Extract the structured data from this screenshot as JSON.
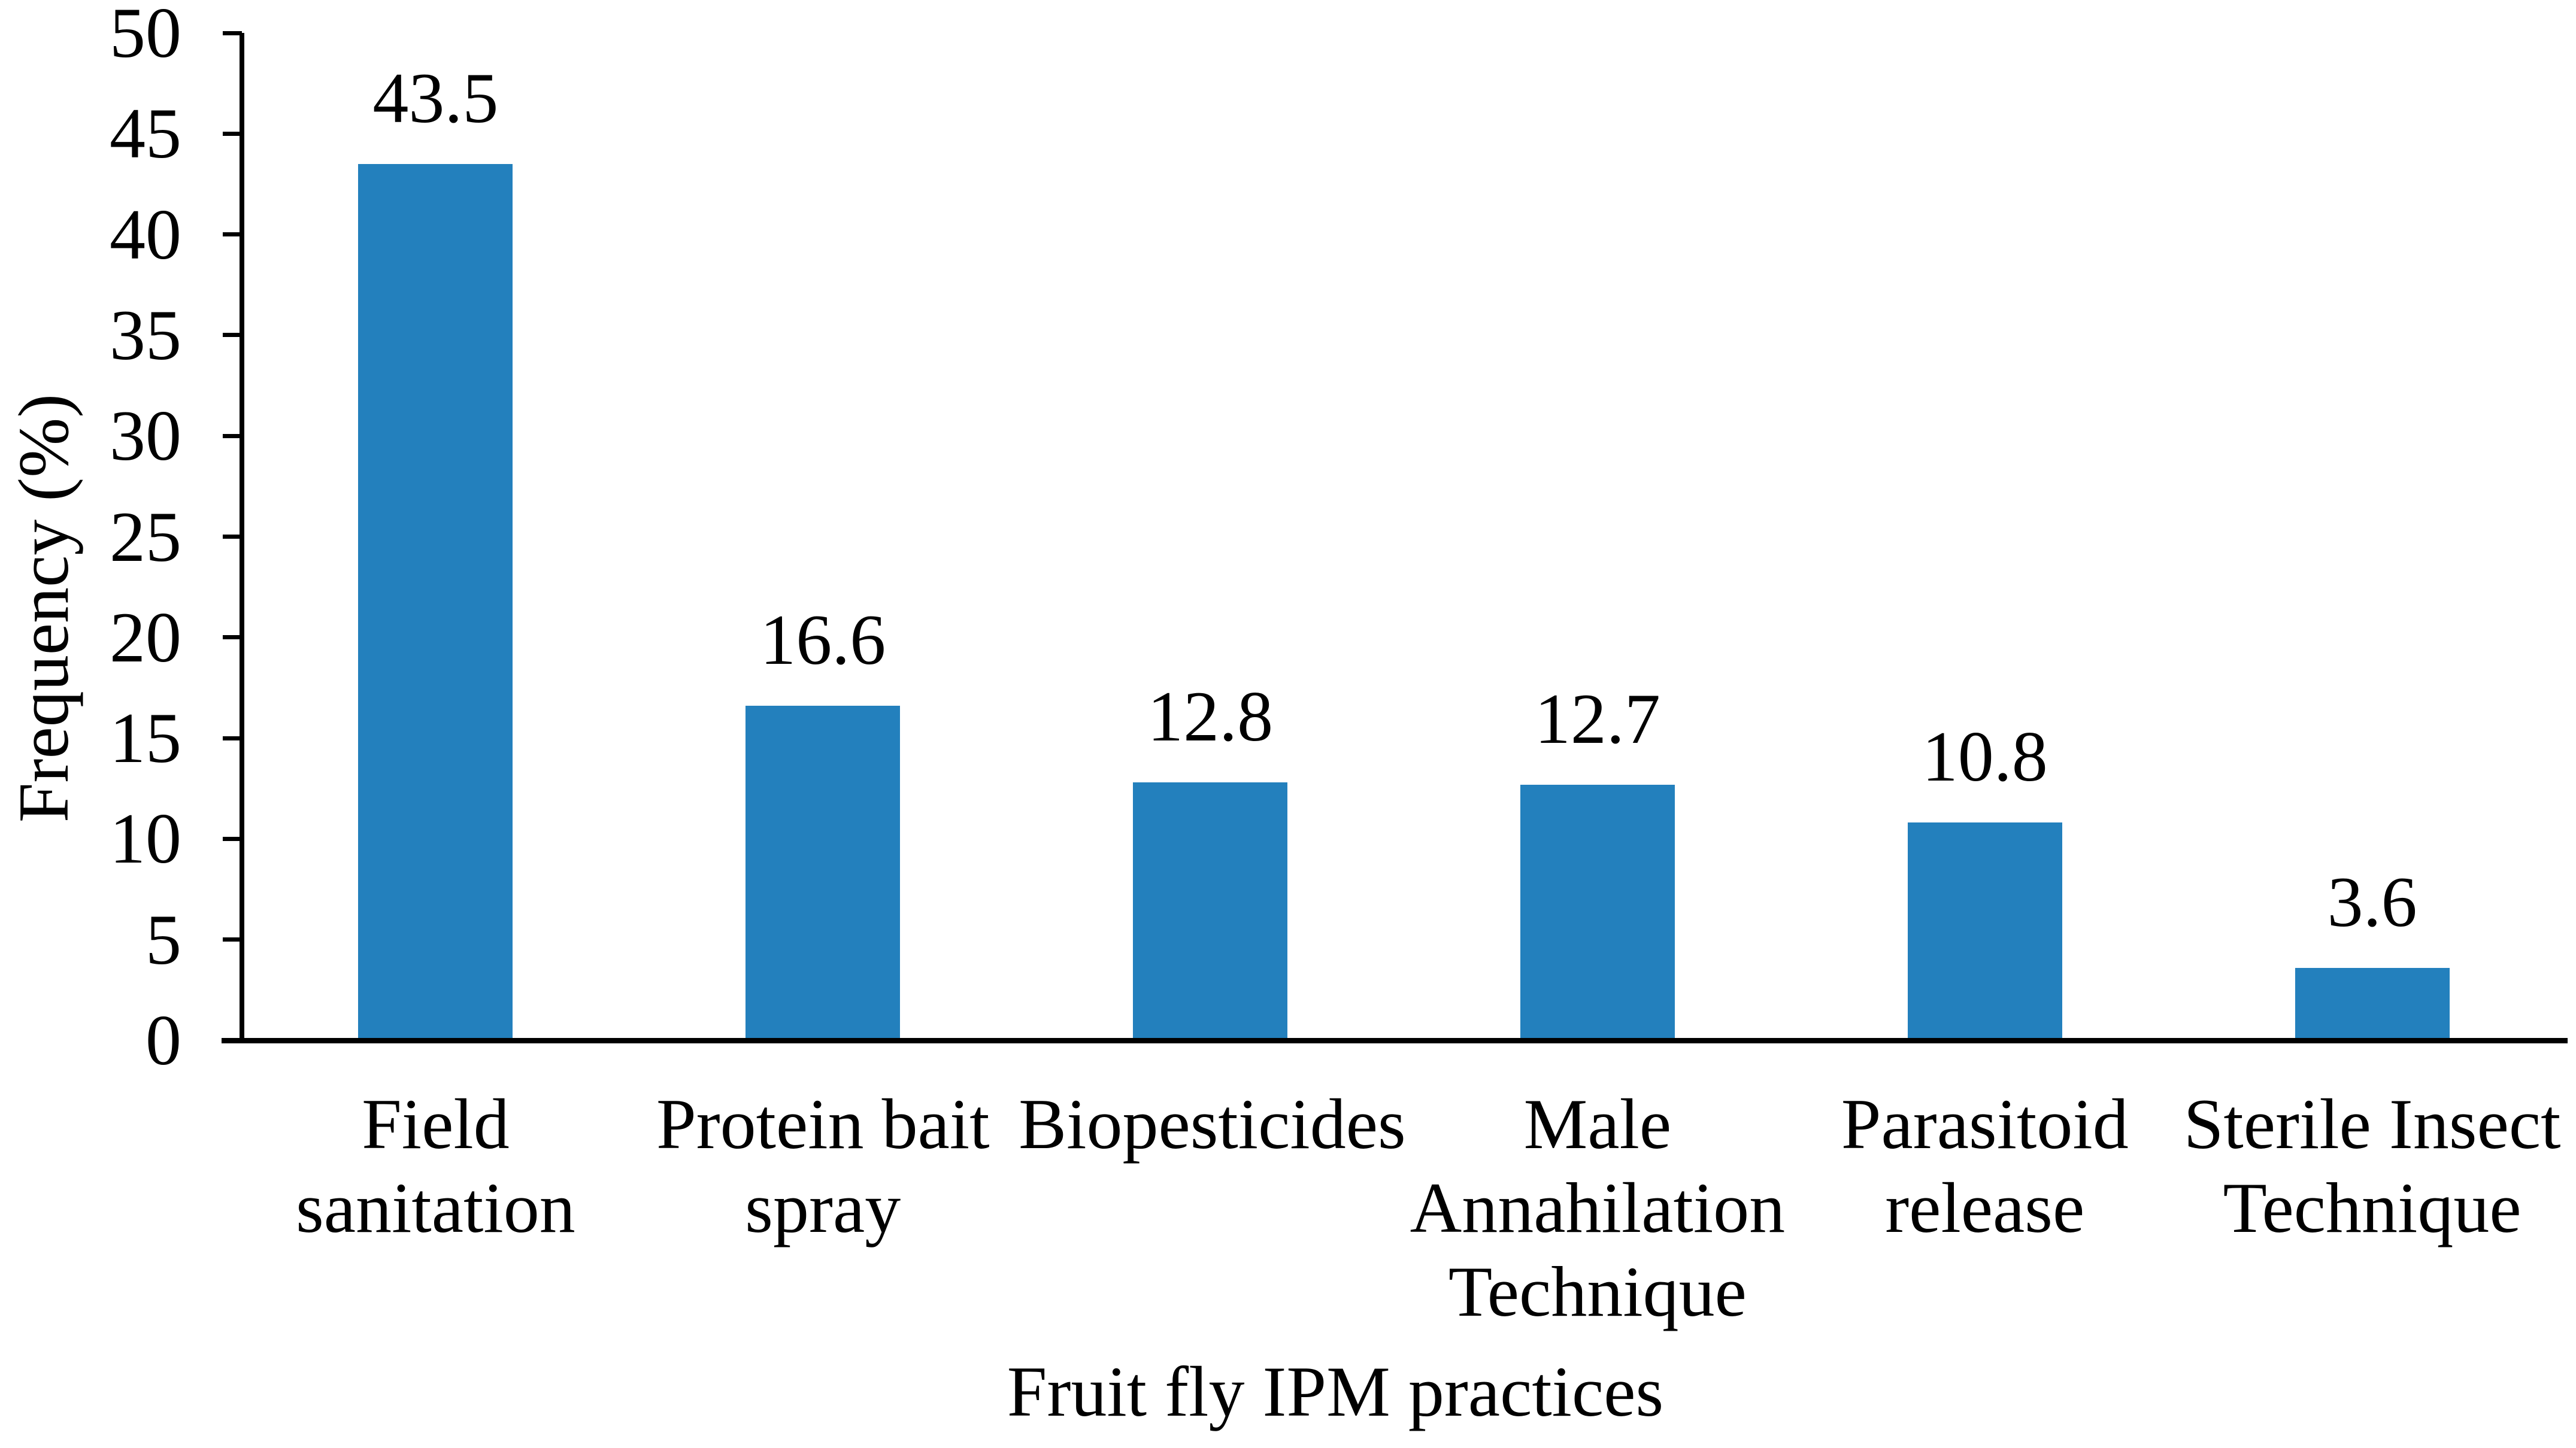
{
  "chart_data": {
    "type": "bar",
    "title": "",
    "xlabel": "Fruit fly IPM practices",
    "ylabel": "Frequency (%)",
    "categories": [
      "Field sanitation",
      "Protein bait spray",
      "Biopesticides",
      "Male Annahilation Technique",
      "Parasitoid release",
      "Sterile Insect Technique"
    ],
    "category_lines": [
      [
        "Field",
        "sanitation"
      ],
      [
        "Protein bait",
        "spray"
      ],
      [
        "Biopesticides"
      ],
      [
        "Male",
        "Annahilation",
        "Technique"
      ],
      [
        "Parasitoid",
        "release"
      ],
      [
        "Sterile Insect",
        "Technique"
      ]
    ],
    "values": [
      43.5,
      16.6,
      12.8,
      12.7,
      10.8,
      3.6
    ],
    "value_labels": [
      "43.5",
      "16.6",
      "12.8",
      "12.7",
      "10.8",
      "3.6"
    ],
    "ylim": [
      0,
      50
    ],
    "ytick_step": 5,
    "ytick_labels": [
      "0",
      "5",
      "10",
      "15",
      "20",
      "25",
      "30",
      "35",
      "40",
      "45",
      "50"
    ],
    "grid": false,
    "legend": "none",
    "bar_color": "#2380BD",
    "axis_color": "#000000",
    "text_color": "#000000",
    "background_color": "#FFFFFF"
  }
}
